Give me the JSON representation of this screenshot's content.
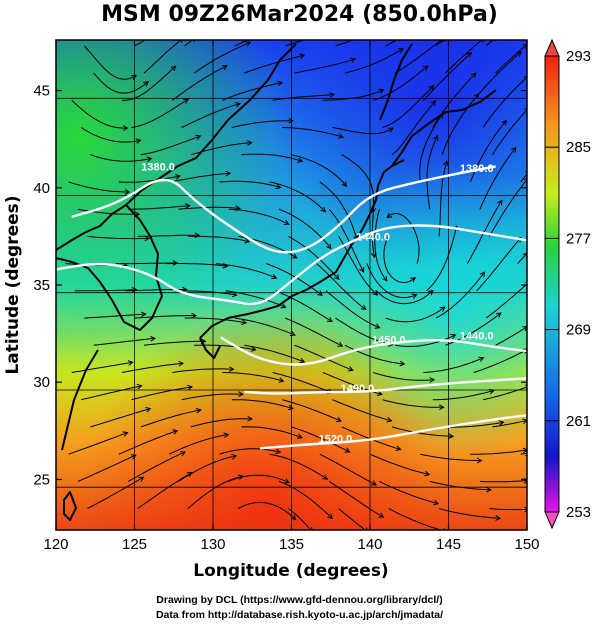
{
  "title": "MSM 09Z26Mar2024 (850.0hPa)",
  "map": {
    "lon_range": [
      120,
      150
    ],
    "lat_range": [
      22.4,
      47.6
    ],
    "x_ticks": [
      120,
      125,
      130,
      135,
      140,
      145,
      150
    ],
    "y_ticks": [
      25,
      30,
      35,
      40,
      45
    ],
    "x_label": "Longitude (degrees)",
    "y_label": "Latitude  (degrees)",
    "colorbar": {
      "min": 253,
      "max": 293,
      "ticks": [
        293,
        285,
        277,
        269,
        261,
        253
      ]
    },
    "contours": [
      {
        "label": "1380.0",
        "points": [
          [
            121,
            38.5
          ],
          [
            124,
            39.2
          ],
          [
            127,
            40.8
          ],
          [
            129,
            39.2
          ],
          [
            132,
            37.5
          ],
          [
            134,
            36.6
          ],
          [
            136,
            36.8
          ],
          [
            138,
            38
          ],
          [
            140,
            39.7
          ],
          [
            143,
            40.3
          ],
          [
            146,
            40.8
          ],
          [
            148,
            41.1
          ]
        ]
      },
      {
        "label": "1440.0",
        "points": [
          [
            120,
            35.8
          ],
          [
            123,
            36.2
          ],
          [
            126,
            35.6
          ],
          [
            128,
            34.5
          ],
          [
            131,
            34.2
          ],
          [
            133,
            33.9
          ],
          [
            135,
            35.2
          ],
          [
            137,
            36.5
          ],
          [
            139,
            37.3
          ],
          [
            141,
            38
          ],
          [
            144,
            38.1
          ],
          [
            147,
            37.7
          ],
          [
            150,
            37.3
          ]
        ]
      },
      {
        "label": "1450.0",
        "points": [
          [
            130.5,
            32.3
          ],
          [
            133,
            31.1
          ],
          [
            136,
            30.8
          ],
          [
            139,
            31.7
          ],
          [
            142,
            32.1
          ],
          [
            145,
            32.2
          ],
          [
            148,
            31.8
          ],
          [
            150,
            31.6
          ]
        ]
      },
      {
        "label": "1490.0",
        "points": [
          [
            132,
            29.5
          ],
          [
            134,
            29.4
          ],
          [
            137,
            29.5
          ],
          [
            140,
            29.5
          ],
          [
            143,
            29.8
          ],
          [
            146,
            30
          ],
          [
            150,
            30.2
          ]
        ]
      },
      {
        "label": "1520.0",
        "points": [
          [
            133,
            26.6
          ],
          [
            136,
            26.8
          ],
          [
            140,
            27
          ],
          [
            144,
            27.6
          ],
          [
            148,
            28.1
          ],
          [
            150,
            28.3
          ]
        ]
      }
    ],
    "contour_labels": [
      {
        "text": "1380.0",
        "lon": 126.5,
        "lat": 40.9
      },
      {
        "text": "1380.0",
        "lon": 146.8,
        "lat": 40.8
      },
      {
        "text": "1440.0",
        "lon": 140.2,
        "lat": 37.3
      },
      {
        "text": "1440.0",
        "lon": 146.8,
        "lat": 32.2
      },
      {
        "text": "1450.0",
        "lon": 141.2,
        "lat": 32.0
      },
      {
        "text": "1490.0",
        "lon": 139.2,
        "lat": 29.5
      },
      {
        "text": "1520.0",
        "lon": 137.8,
        "lat": 26.9
      }
    ]
  },
  "credits": {
    "line1": "Drawing by DCL (https://www.gfd-dennou.org/library/dcl/)",
    "line2": "Data from http://database.rish.kyoto-u.ac.jp/arch/jmadata/"
  }
}
